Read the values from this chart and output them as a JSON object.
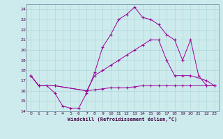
{
  "xlabel": "Windchill (Refroidissement éolien,°C)",
  "bg_color": "#cdeaec",
  "line_color": "#990099",
  "grid_color": "#aadddd",
  "ylim": [
    14,
    24.5
  ],
  "xlim": [
    0,
    23
  ],
  "yticks": [
    14,
    15,
    16,
    17,
    18,
    19,
    20,
    21,
    22,
    23,
    24
  ],
  "xticks": [
    0,
    1,
    2,
    3,
    4,
    5,
    6,
    7,
    8,
    9,
    10,
    11,
    12,
    13,
    14,
    15,
    16,
    17,
    18,
    19,
    20,
    21,
    22,
    23
  ],
  "line1_x": [
    0,
    1,
    2,
    3,
    4,
    5,
    6,
    7,
    8,
    9,
    10,
    11,
    12,
    13,
    14,
    15,
    16,
    17,
    18,
    19,
    20,
    21,
    22,
    23
  ],
  "line1_y": [
    17.5,
    16.5,
    16.5,
    15.8,
    14.5,
    14.3,
    14.3,
    15.8,
    17.8,
    20.3,
    21.5,
    23.0,
    23.5,
    24.2,
    23.2,
    23.0,
    22.5,
    21.5,
    21.0,
    19.0,
    21.0,
    17.5,
    16.5,
    16.5
  ],
  "line2_x": [
    0,
    1,
    3,
    7,
    8,
    9,
    10,
    11,
    12,
    13,
    14,
    15,
    16,
    17,
    18,
    19,
    20,
    22,
    23
  ],
  "line2_y": [
    17.5,
    16.5,
    16.5,
    16.0,
    17.5,
    18.0,
    18.5,
    19.0,
    19.5,
    20.0,
    20.5,
    21.0,
    21.0,
    19.0,
    17.5,
    17.5,
    17.5,
    17.0,
    16.5
  ],
  "line3_x": [
    0,
    1,
    3,
    7,
    8,
    9,
    10,
    11,
    12,
    13,
    14,
    15,
    16,
    17,
    18,
    19,
    20,
    22,
    23
  ],
  "line3_y": [
    17.5,
    16.5,
    16.5,
    16.0,
    16.1,
    16.2,
    16.3,
    16.3,
    16.3,
    16.4,
    16.5,
    16.5,
    16.5,
    16.5,
    16.5,
    16.5,
    16.5,
    16.5,
    16.5
  ]
}
